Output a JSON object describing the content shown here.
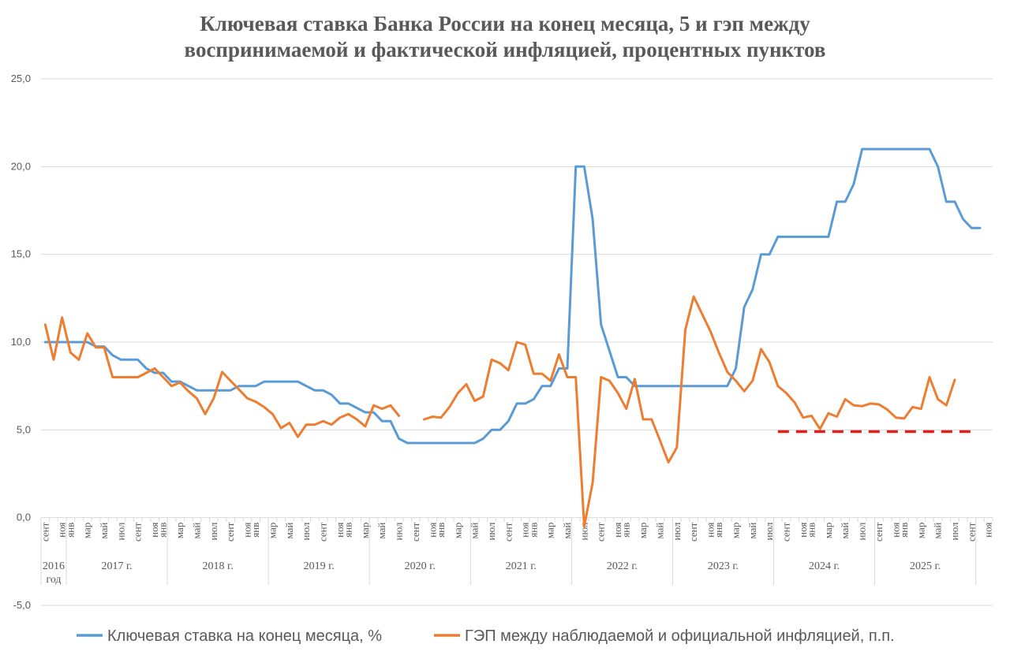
{
  "chart_data": {
    "type": "line",
    "title": [
      "Ключевая ставка Банка России на конец месяца, 5 и гэп между",
      "воспринимаемой и фактической инфляцией, процентных пунктов"
    ],
    "ylim": [
      -5,
      25
    ],
    "yticks": [
      "-5,0",
      "0,0",
      "5,0",
      "10,0",
      "15,0",
      "20,0",
      "25,0"
    ],
    "grid": true,
    "legend_position": "bottom",
    "x_month_labels": [
      "сент",
      "",
      "ноя",
      "янв",
      "",
      "мар",
      "",
      "май",
      "",
      "июл",
      "",
      "сент",
      "",
      "ноя",
      "янв",
      "",
      "мар",
      "",
      "май",
      "",
      "июл",
      "",
      "сент",
      "",
      "ноя",
      "янв",
      "",
      "мар",
      "",
      "май",
      "",
      "июл",
      "",
      "сент",
      "",
      "ноя",
      "янв",
      "",
      "мар",
      "",
      "май",
      "",
      "июл",
      "",
      "сент",
      "",
      "ноя",
      "янв",
      "",
      "мар",
      "",
      "май",
      "",
      "июл",
      "",
      "сент",
      "",
      "ноя",
      "янв",
      "",
      "мар",
      "",
      "май",
      "",
      "июл",
      "",
      "сент",
      "",
      "ноя",
      "янв",
      "",
      "мар",
      "",
      "май",
      "",
      "июл",
      "",
      "сент",
      "",
      "ноя",
      "янв",
      "",
      "мар",
      "",
      "май",
      "",
      "июл",
      "",
      "сент",
      "",
      "ноя",
      "янв",
      "",
      "мар",
      "",
      "май",
      "",
      "июл",
      "",
      "сент",
      "",
      "ноя",
      "янв",
      "",
      "мар",
      "",
      "май",
      "",
      "июл",
      "",
      "сент",
      "",
      "ноя"
    ],
    "year_groups": [
      {
        "label": "2016\nгод",
        "start": 0,
        "end": 3
      },
      {
        "label": "2017 г.",
        "start": 3,
        "end": 15
      },
      {
        "label": "2018 г.",
        "start": 15,
        "end": 27
      },
      {
        "label": "2019 г.",
        "start": 27,
        "end": 39
      },
      {
        "label": "2020 г.",
        "start": 39,
        "end": 51
      },
      {
        "label": "2021 г.",
        "start": 51,
        "end": 63
      },
      {
        "label": "2022 г.",
        "start": 63,
        "end": 75
      },
      {
        "label": "2023 г.",
        "start": 75,
        "end": 87
      },
      {
        "label": "2024 г.",
        "start": 87,
        "end": 99
      },
      {
        "label": "2025 г.",
        "start": 99,
        "end": 111
      }
    ],
    "series": [
      {
        "name": "Ключевая ставка на конец месяца, %",
        "color": "#5B9BD5",
        "values": [
          10,
          10,
          10,
          10,
          10,
          10,
          9.75,
          9.75,
          9.25,
          9,
          9,
          9,
          8.5,
          8.25,
          8.25,
          7.75,
          7.75,
          7.5,
          7.25,
          7.25,
          7.25,
          7.25,
          7.25,
          7.5,
          7.5,
          7.5,
          7.75,
          7.75,
          7.75,
          7.75,
          7.75,
          7.5,
          7.25,
          7.25,
          7,
          6.5,
          6.5,
          6.25,
          6,
          6,
          5.5,
          5.5,
          4.5,
          4.25,
          4.25,
          4.25,
          4.25,
          4.25,
          4.25,
          4.25,
          4.25,
          4.25,
          4.5,
          5,
          5,
          5.5,
          6.5,
          6.5,
          6.75,
          7.5,
          7.5,
          8.5,
          8.5,
          20,
          20,
          17,
          11,
          9.5,
          8,
          8,
          7.5,
          7.5,
          7.5,
          7.5,
          7.5,
          7.5,
          7.5,
          7.5,
          7.5,
          7.5,
          7.5,
          7.5,
          8.5,
          12,
          13,
          15,
          15,
          16,
          16,
          16,
          16,
          16,
          16,
          16,
          18,
          18,
          19,
          21,
          21,
          21,
          21,
          21,
          21,
          21,
          21,
          21,
          20,
          18,
          18,
          17,
          16.5,
          16.5
        ]
      },
      {
        "name": "ГЭП между наблюдаемой и официальной инфляцией, п.п.",
        "color": "#ED7D31",
        "values": [
          11,
          9,
          11.4,
          9.4,
          9,
          10.5,
          9.7,
          9.7,
          8,
          8,
          8,
          8,
          8.25,
          8.5,
          8,
          7.5,
          7.7,
          7.2,
          6.8,
          5.9,
          6.8,
          8.3,
          7.8,
          7.3,
          6.8,
          6.6,
          6.3,
          5.9,
          5.1,
          5.4,
          4.6,
          5.3,
          5.3,
          5.5,
          5.3,
          5.7,
          5.9,
          5.6,
          5.2,
          6.4,
          6.2,
          6.4,
          5.8,
          null,
          null,
          5.6,
          5.75,
          5.7,
          6.3,
          7.1,
          7.6,
          6.65,
          6.9,
          9,
          8.8,
          8.4,
          10,
          9.85,
          8.2,
          8.2,
          7.8,
          9.3,
          8,
          8,
          -0.5,
          2,
          8,
          7.8,
          7.1,
          6.2,
          7.9,
          5.6,
          5.6,
          4.4,
          3.15,
          4,
          10.7,
          12.6,
          11.6,
          10.6,
          9.4,
          8.3,
          7.8,
          7.2,
          7.8,
          9.6,
          8.85,
          7.5,
          7.1,
          6.55,
          5.7,
          5.8,
          5.05,
          5.95,
          5.75,
          6.75,
          6.4,
          6.35,
          6.5,
          6.45,
          6.15,
          5.7,
          5.65,
          6.3,
          6.2,
          8,
          6.75,
          6.4,
          7.85
        ]
      },
      {
        "name": "",
        "color": "#E0201C",
        "dashed": true,
        "x_range": [
          87,
          110
        ],
        "value": 4.9
      }
    ]
  }
}
